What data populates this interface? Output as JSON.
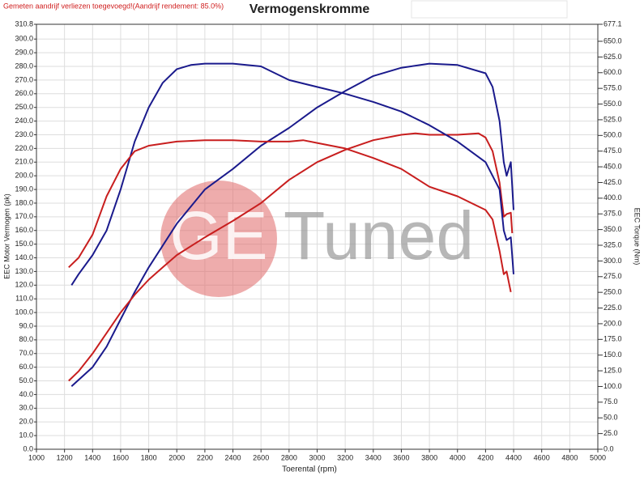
{
  "chart_data": {
    "type": "line",
    "title": "Vermogenskromme",
    "note": "Gemeten aandrijf verliezen toegevoegd!(Aandrijf rendement: 85.0%)",
    "watermark": {
      "left": "GE",
      "right": "Tuned"
    },
    "x_label": "Toerental (rpm)",
    "y_label": "EEC Motor Vermogen (pk)",
    "y2_label": "EEC Torque (Nm)",
    "xlim": [
      1000,
      5000
    ],
    "xticks": [
      1000,
      1200,
      1400,
      1600,
      1800,
      2000,
      2200,
      2400,
      2600,
      2800,
      3000,
      3200,
      3400,
      3600,
      3800,
      4000,
      4200,
      4400,
      4600,
      4800,
      5000
    ],
    "ylim": [
      0,
      310.8
    ],
    "yticks": [
      {
        "value": 0,
        "label": "0.0"
      },
      {
        "value": 10,
        "label": "10.0"
      },
      {
        "value": 20,
        "label": "20.0"
      },
      {
        "value": 30,
        "label": "30.0"
      },
      {
        "value": 40,
        "label": "40.0"
      },
      {
        "value": 50,
        "label": "50.0"
      },
      {
        "value": 60,
        "label": "60.0"
      },
      {
        "value": 70,
        "label": "70.0"
      },
      {
        "value": 80,
        "label": "80.0"
      },
      {
        "value": 90,
        "label": "90.0"
      },
      {
        "value": 100,
        "label": "100.0"
      },
      {
        "value": 110,
        "label": "110.0"
      },
      {
        "value": 120,
        "label": "120.0"
      },
      {
        "value": 130,
        "label": "130.0"
      },
      {
        "value": 140,
        "label": "140.0"
      },
      {
        "value": 150,
        "label": "150.0"
      },
      {
        "value": 160,
        "label": "160.0"
      },
      {
        "value": 170,
        "label": "170.0"
      },
      {
        "value": 180,
        "label": "180.0"
      },
      {
        "value": 190,
        "label": "190.0"
      },
      {
        "value": 200,
        "label": "200.0"
      },
      {
        "value": 210,
        "label": "210.0"
      },
      {
        "value": 220,
        "label": "220.0"
      },
      {
        "value": 230,
        "label": "230.0"
      },
      {
        "value": 240,
        "label": "240.0"
      },
      {
        "value": 250,
        "label": "250.0"
      },
      {
        "value": 260,
        "label": "260.0"
      },
      {
        "value": 270,
        "label": "270.0"
      },
      {
        "value": 280,
        "label": "280.0"
      },
      {
        "value": 290,
        "label": "290.0"
      },
      {
        "value": 300,
        "label": "300.0"
      },
      310.8
    ],
    "y2lim": [
      0,
      677.1
    ],
    "y2ticks": [
      {
        "value": 0,
        "label": "0.0"
      },
      {
        "value": 25,
        "label": "25.0"
      },
      {
        "value": 50,
        "label": "50.0"
      },
      {
        "value": 75,
        "label": "75.0"
      },
      {
        "value": 100,
        "label": "100.0"
      },
      {
        "value": 125,
        "label": "125.0"
      },
      {
        "value": 150,
        "label": "150.0"
      },
      {
        "value": 175,
        "label": "175.0"
      },
      {
        "value": 200,
        "label": "200.0"
      },
      {
        "value": 225,
        "label": "225.0"
      },
      {
        "value": 250,
        "label": "250.0"
      },
      {
        "value": 275,
        "label": "275.0"
      },
      {
        "value": 300,
        "label": "300.0"
      },
      {
        "value": 325,
        "label": "325.0"
      },
      {
        "value": 350,
        "label": "350.0"
      },
      {
        "value": 375,
        "label": "375.0"
      },
      {
        "value": 400,
        "label": "400.0"
      },
      {
        "value": 425,
        "label": "425.0"
      },
      {
        "value": 450,
        "label": "450.0"
      },
      {
        "value": 475,
        "label": "475.0"
      },
      {
        "value": 500,
        "label": "500.0"
      },
      {
        "value": 525,
        "label": "525.0"
      },
      {
        "value": 550,
        "label": "550.0"
      },
      {
        "value": 575,
        "label": "575.0"
      },
      {
        "value": 600,
        "label": "600.0"
      },
      {
        "value": 625,
        "label": "625.0"
      },
      {
        "value": 650,
        "label": "650.0"
      },
      677.1
    ],
    "grid": true,
    "series": [
      {
        "color": "#1a1a8c",
        "x": [
          1250,
          1400,
          1500,
          1600,
          1700,
          1800,
          2000,
          2200,
          2400,
          2600,
          2800,
          3000,
          3200,
          3400,
          3600,
          3800,
          4000,
          4200,
          4250,
          4300,
          4330,
          4350,
          4380,
          4400
        ],
        "values": [
          46,
          60,
          75,
          95,
          115,
          133,
          165,
          190,
          205,
          222,
          235,
          250,
          262,
          273,
          279,
          282,
          281,
          275,
          265,
          240,
          210,
          200,
          210,
          175
        ]
      },
      {
        "color": "#c81e1e",
        "x": [
          1230,
          1300,
          1400,
          1500,
          1600,
          1700,
          1800,
          1900,
          2000,
          2200,
          2400,
          2600,
          2800,
          3000,
          3200,
          3400,
          3600,
          3700,
          3800,
          4000,
          4150,
          4200,
          4250,
          4300,
          4330,
          4350,
          4380,
          4390
        ],
        "values": [
          50,
          57,
          70,
          85,
          100,
          113,
          124,
          133,
          142,
          155,
          167,
          180,
          197,
          210,
          219,
          226,
          230,
          231,
          230,
          230,
          231,
          228,
          218,
          195,
          170,
          172,
          173,
          158
        ]
      },
      {
        "color": "#1a1a8c",
        "axis": "y2",
        "x": [
          1250,
          1300,
          1400,
          1500,
          1600,
          1700,
          1800,
          1900,
          2000,
          2100,
          2200,
          2400,
          2600,
          2800,
          3000,
          3200,
          3400,
          3600,
          3800,
          4000,
          4200,
          4300,
          4330,
          4350,
          4380,
          4400
        ],
        "values": [
          261.4,
          278.9,
          309.4,
          348.6,
          413.9,
          490.2,
          544.6,
          583.9,
          605.6,
          612.2,
          614.4,
          614.4,
          610,
          588.2,
          577.3,
          566.4,
          553.4,
          538.1,
          516.3,
          490.2,
          457.5,
          413.9,
          348.6,
          333.3,
          337.7,
          278.9
        ]
      },
      {
        "color": "#c81e1e",
        "axis": "y2",
        "x": [
          1230,
          1300,
          1400,
          1500,
          1600,
          1700,
          1800,
          2000,
          2200,
          2400,
          2600,
          2800,
          2900,
          3000,
          3200,
          3400,
          3600,
          3800,
          4000,
          4200,
          4250,
          4300,
          4330,
          4350,
          4380
        ],
        "values": [
          289.8,
          305.0,
          342.0,
          403.0,
          446.6,
          474.9,
          483.6,
          490.2,
          492.4,
          492.4,
          490.2,
          490.2,
          492.4,
          488.0,
          479.3,
          464.0,
          446.6,
          418.3,
          403.0,
          381.3,
          366.0,
          315.9,
          278.9,
          283.2,
          250.5
        ]
      }
    ]
  }
}
